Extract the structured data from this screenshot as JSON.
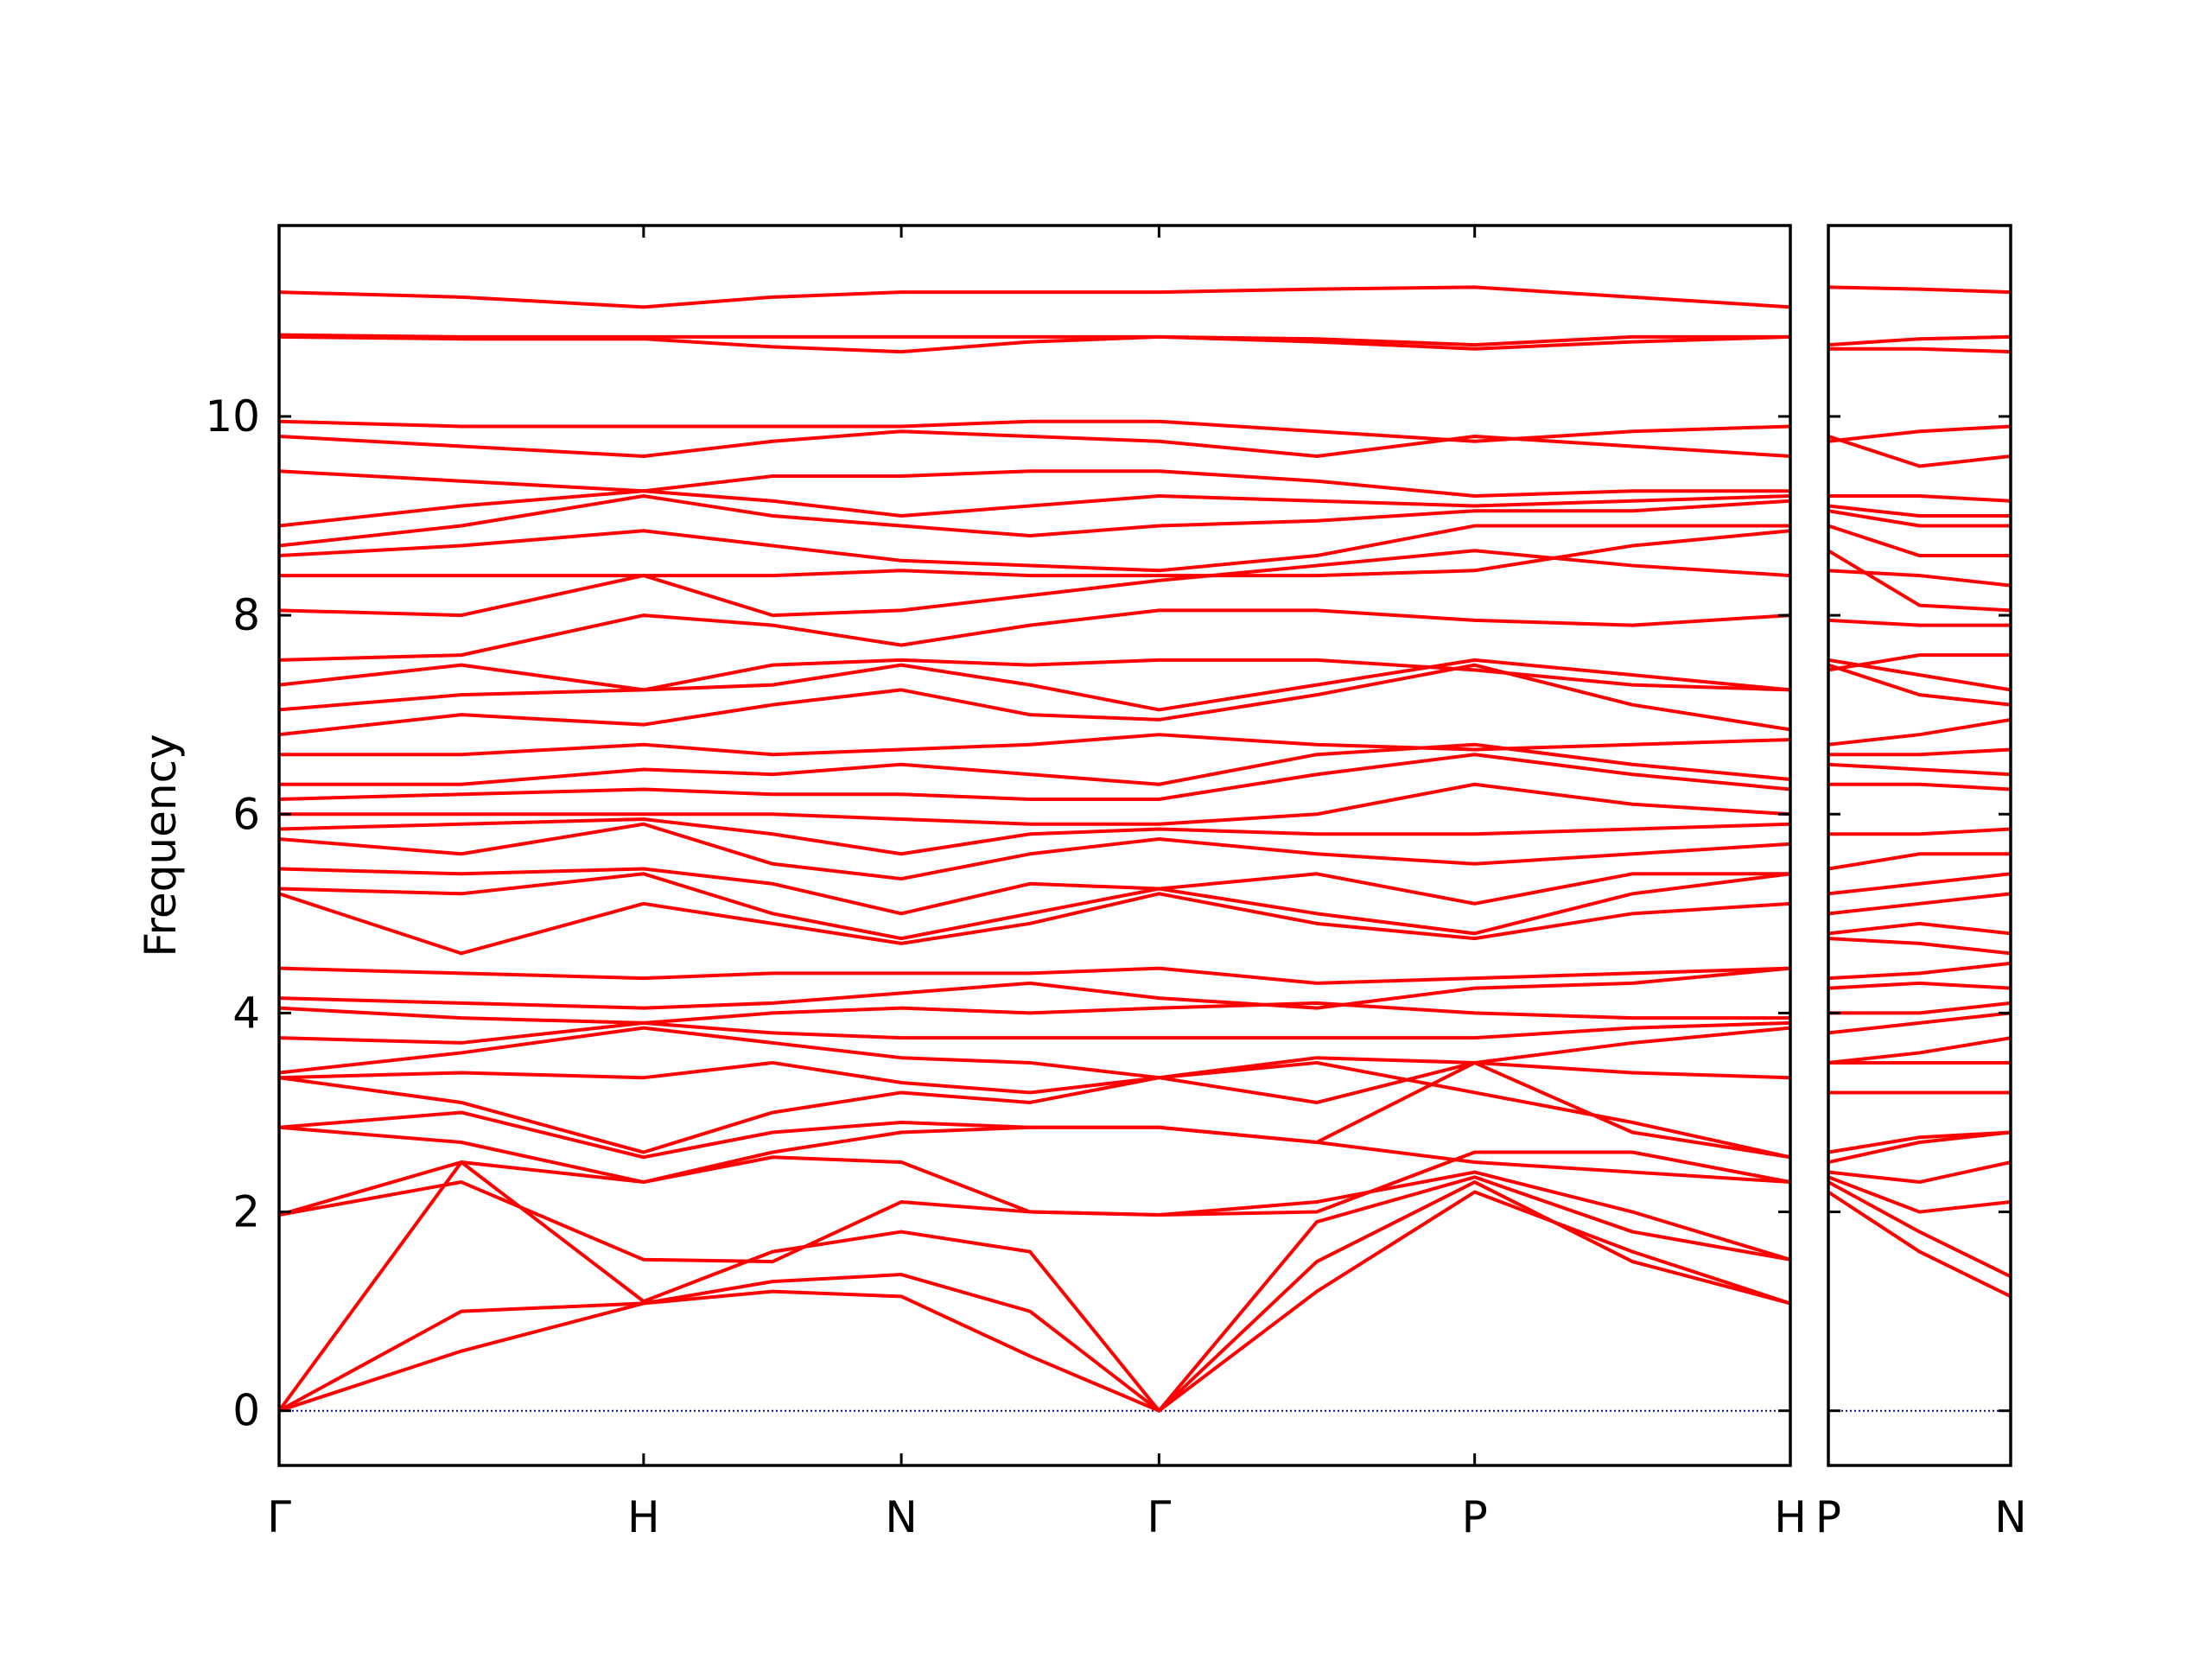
{
  "chart_data": [
    {
      "type": "line",
      "ylabel": "Frequency",
      "color": "#ff0000",
      "xlim": [
        0,
        4.146
      ],
      "ylim": [
        -0.55,
        11.92
      ],
      "yticks": [
        0,
        2,
        4,
        6,
        8,
        10
      ],
      "xticks": [
        {
          "value": 0,
          "label": "Γ"
        },
        {
          "value": 1,
          "label": "H"
        },
        {
          "value": 1.707,
          "label": "N"
        },
        {
          "value": 2.414,
          "label": "Γ"
        },
        {
          "value": 3.28,
          "label": "P"
        },
        {
          "value": 4.146,
          "label": "H"
        }
      ],
      "hline": 0,
      "hline_color": "#0000aa",
      "x": [
        0,
        0.5,
        1,
        1.354,
        1.707,
        2.06,
        2.414,
        2.847,
        3.28,
        3.713,
        4.146
      ],
      "series": [
        {
          "values": [
            0,
            0.6,
            1.08,
            1.2,
            1.15,
            0.55,
            0,
            1.2,
            2.2,
            1.6,
            1.08
          ]
        },
        {
          "values": [
            0,
            1.0,
            1.08,
            1.3,
            1.37,
            1.0,
            0,
            1.5,
            2.3,
            1.5,
            1.08
          ]
        },
        {
          "values": [
            0,
            2.5,
            1.1,
            1.6,
            1.8,
            1.6,
            0,
            1.9,
            2.35,
            1.8,
            1.52
          ]
        },
        {
          "values": [
            1.97,
            2.3,
            1.52,
            1.5,
            2.1,
            2.0,
            1.97,
            2.1,
            2.4,
            2.0,
            1.52
          ]
        },
        {
          "values": [
            1.97,
            2.5,
            2.3,
            2.55,
            2.5,
            2.0,
            1.97,
            2.0,
            2.6,
            2.6,
            2.3
          ]
        },
        {
          "values": [
            2.85,
            2.7,
            2.3,
            2.6,
            2.8,
            2.85,
            2.85,
            2.7,
            2.5,
            2.4,
            2.3
          ]
        },
        {
          "values": [
            2.85,
            3.0,
            2.55,
            2.8,
            2.9,
            2.85,
            2.85,
            2.7,
            3.5,
            2.8,
            2.55
          ]
        },
        {
          "values": [
            3.35,
            3.1,
            2.6,
            3.0,
            3.2,
            3.1,
            3.35,
            3.5,
            3.2,
            2.9,
            2.55
          ]
        },
        {
          "values": [
            3.35,
            3.4,
            3.35,
            3.5,
            3.3,
            3.2,
            3.35,
            3.55,
            3.5,
            3.4,
            3.35
          ]
        },
        {
          "values": [
            3.4,
            3.6,
            3.85,
            3.7,
            3.55,
            3.5,
            3.35,
            3.1,
            3.5,
            3.7,
            3.85
          ]
        },
        {
          "values": [
            3.75,
            3.7,
            3.9,
            3.8,
            3.75,
            3.75,
            3.75,
            3.75,
            3.75,
            3.85,
            3.9
          ]
        },
        {
          "values": [
            4.05,
            3.95,
            3.9,
            4.0,
            4.05,
            4.0,
            4.05,
            4.1,
            4.0,
            3.95,
            3.95
          ]
        },
        {
          "values": [
            4.15,
            4.1,
            4.05,
            4.1,
            4.2,
            4.3,
            4.15,
            4.05,
            4.25,
            4.3,
            4.45
          ]
        },
        {
          "values": [
            4.45,
            4.4,
            4.35,
            4.4,
            4.4,
            4.4,
            4.45,
            4.3,
            4.35,
            4.4,
            4.45
          ]
        },
        {
          "values": [
            5.2,
            4.6,
            5.1,
            4.9,
            4.7,
            4.9,
            5.2,
            4.9,
            4.75,
            5.0,
            5.1
          ]
        },
        {
          "values": [
            5.25,
            5.2,
            5.4,
            5.0,
            4.75,
            5.0,
            5.25,
            5.0,
            4.8,
            5.2,
            5.4
          ]
        },
        {
          "values": [
            5.45,
            5.4,
            5.45,
            5.3,
            5.0,
            5.3,
            5.25,
            5.4,
            5.1,
            5.4,
            5.4
          ]
        },
        {
          "values": [
            5.75,
            5.6,
            5.9,
            5.5,
            5.35,
            5.6,
            5.75,
            5.6,
            5.5,
            5.6,
            5.7
          ]
        },
        {
          "values": [
            5.85,
            5.9,
            5.95,
            5.8,
            5.6,
            5.8,
            5.85,
            5.8,
            5.8,
            5.85,
            5.9
          ]
        },
        {
          "values": [
            6.0,
            6.0,
            6.0,
            6.0,
            5.95,
            5.9,
            5.9,
            6.0,
            6.3,
            6.1,
            6.0
          ]
        },
        {
          "values": [
            6.15,
            6.2,
            6.25,
            6.2,
            6.2,
            6.15,
            6.15,
            6.4,
            6.6,
            6.4,
            6.25
          ]
        },
        {
          "values": [
            6.3,
            6.3,
            6.45,
            6.4,
            6.5,
            6.4,
            6.3,
            6.6,
            6.7,
            6.5,
            6.35
          ]
        },
        {
          "values": [
            6.6,
            6.6,
            6.7,
            6.6,
            6.65,
            6.7,
            6.8,
            6.7,
            6.65,
            6.7,
            6.75
          ]
        },
        {
          "values": [
            6.8,
            7.0,
            6.9,
            7.1,
            7.25,
            7.0,
            6.95,
            7.2,
            7.5,
            7.1,
            6.85
          ]
        },
        {
          "values": [
            7.05,
            7.2,
            7.25,
            7.3,
            7.5,
            7.3,
            7.05,
            7.3,
            7.55,
            7.4,
            7.25
          ]
        },
        {
          "values": [
            7.3,
            7.5,
            7.25,
            7.5,
            7.55,
            7.5,
            7.55,
            7.55,
            7.45,
            7.3,
            7.25
          ]
        },
        {
          "values": [
            7.55,
            7.6,
            8.0,
            7.9,
            7.7,
            7.9,
            8.05,
            8.05,
            7.95,
            7.9,
            8.0
          ]
        },
        {
          "values": [
            8.05,
            8.0,
            8.4,
            8.0,
            8.05,
            8.2,
            8.35,
            8.5,
            8.65,
            8.5,
            8.4
          ]
        },
        {
          "values": [
            8.4,
            8.4,
            8.4,
            8.4,
            8.45,
            8.4,
            8.4,
            8.4,
            8.45,
            8.7,
            8.85
          ]
        },
        {
          "values": [
            8.6,
            8.7,
            8.85,
            8.7,
            8.55,
            8.5,
            8.45,
            8.6,
            8.9,
            8.9,
            8.9
          ]
        },
        {
          "values": [
            8.7,
            8.9,
            9.2,
            9.0,
            8.9,
            8.8,
            8.9,
            8.95,
            9.05,
            9.05,
            9.15
          ]
        },
        {
          "values": [
            8.9,
            9.1,
            9.25,
            9.15,
            9.0,
            9.1,
            9.2,
            9.15,
            9.1,
            9.15,
            9.2
          ]
        },
        {
          "values": [
            9.45,
            9.35,
            9.25,
            9.4,
            9.4,
            9.45,
            9.45,
            9.35,
            9.2,
            9.25,
            9.25
          ]
        },
        {
          "values": [
            9.8,
            9.7,
            9.6,
            9.75,
            9.85,
            9.8,
            9.75,
            9.6,
            9.8,
            9.7,
            9.6
          ]
        },
        {
          "values": [
            9.95,
            9.9,
            9.9,
            9.9,
            9.9,
            9.95,
            9.95,
            9.85,
            9.75,
            9.85,
            9.9
          ]
        },
        {
          "values": [
            10.8,
            10.78,
            10.78,
            10.7,
            10.65,
            10.75,
            10.8,
            10.75,
            10.68,
            10.75,
            10.8
          ]
        },
        {
          "values": [
            10.82,
            10.8,
            10.8,
            10.8,
            10.8,
            10.8,
            10.8,
            10.78,
            10.72,
            10.8,
            10.8
          ]
        },
        {
          "values": [
            11.25,
            11.2,
            11.1,
            11.2,
            11.25,
            11.25,
            11.25,
            11.28,
            11.3,
            11.2,
            11.1
          ]
        }
      ]
    },
    {
      "type": "line",
      "color": "#ff0000",
      "xlim": [
        0,
        0.5
      ],
      "ylim": [
        -0.55,
        11.92
      ],
      "yticks": [
        0,
        2,
        4,
        6,
        8,
        10
      ],
      "xticks": [
        {
          "value": 0,
          "label": "P"
        },
        {
          "value": 0.5,
          "label": "N"
        }
      ],
      "hline": 0,
      "hline_color": "#0000aa",
      "x": [
        0,
        0.25,
        0.5
      ],
      "series": [
        {
          "values": [
            2.2,
            1.6,
            1.15
          ]
        },
        {
          "values": [
            2.3,
            1.8,
            1.35
          ]
        },
        {
          "values": [
            2.35,
            2.0,
            2.1
          ]
        },
        {
          "values": [
            2.4,
            2.3,
            2.5
          ]
        },
        {
          "values": [
            2.5,
            2.7,
            2.8
          ]
        },
        {
          "values": [
            2.6,
            2.75,
            2.8
          ]
        },
        {
          "values": [
            3.2,
            3.2,
            3.2
          ]
        },
        {
          "values": [
            3.5,
            3.5,
            3.5
          ]
        },
        {
          "values": [
            3.5,
            3.6,
            3.75
          ]
        },
        {
          "values": [
            3.8,
            3.9,
            4.0
          ]
        },
        {
          "values": [
            4.0,
            4.0,
            4.1
          ]
        },
        {
          "values": [
            4.25,
            4.3,
            4.25
          ]
        },
        {
          "values": [
            4.35,
            4.4,
            4.5
          ]
        },
        {
          "values": [
            4.75,
            4.7,
            4.6
          ]
        },
        {
          "values": [
            4.8,
            4.9,
            4.8
          ]
        },
        {
          "values": [
            5.0,
            5.1,
            5.2
          ]
        },
        {
          "values": [
            5.2,
            5.3,
            5.4
          ]
        },
        {
          "values": [
            5.45,
            5.6,
            5.6
          ]
        },
        {
          "values": [
            5.8,
            5.8,
            5.85
          ]
        },
        {
          "values": [
            6.3,
            6.3,
            6.25
          ]
        },
        {
          "values": [
            6.5,
            6.45,
            6.4
          ]
        },
        {
          "values": [
            6.6,
            6.6,
            6.65
          ]
        },
        {
          "values": [
            6.7,
            6.8,
            6.95
          ]
        },
        {
          "values": [
            7.5,
            7.2,
            7.1
          ]
        },
        {
          "values": [
            7.55,
            7.4,
            7.25
          ]
        },
        {
          "values": [
            7.45,
            7.6,
            7.6
          ]
        },
        {
          "values": [
            7.95,
            7.9,
            7.9
          ]
        },
        {
          "values": [
            8.65,
            8.1,
            8.05
          ]
        },
        {
          "values": [
            8.45,
            8.4,
            8.3
          ]
        },
        {
          "values": [
            8.9,
            8.6,
            8.6
          ]
        },
        {
          "values": [
            9.05,
            8.9,
            8.9
          ]
        },
        {
          "values": [
            9.1,
            9.0,
            9.0
          ]
        },
        {
          "values": [
            9.2,
            9.2,
            9.15
          ]
        },
        {
          "values": [
            9.8,
            9.5,
            9.6
          ]
        },
        {
          "values": [
            9.75,
            9.85,
            9.9
          ]
        },
        {
          "values": [
            10.68,
            10.68,
            10.65
          ]
        },
        {
          "values": [
            10.72,
            10.78,
            10.8
          ]
        },
        {
          "values": [
            11.3,
            11.28,
            11.25
          ]
        }
      ]
    }
  ]
}
